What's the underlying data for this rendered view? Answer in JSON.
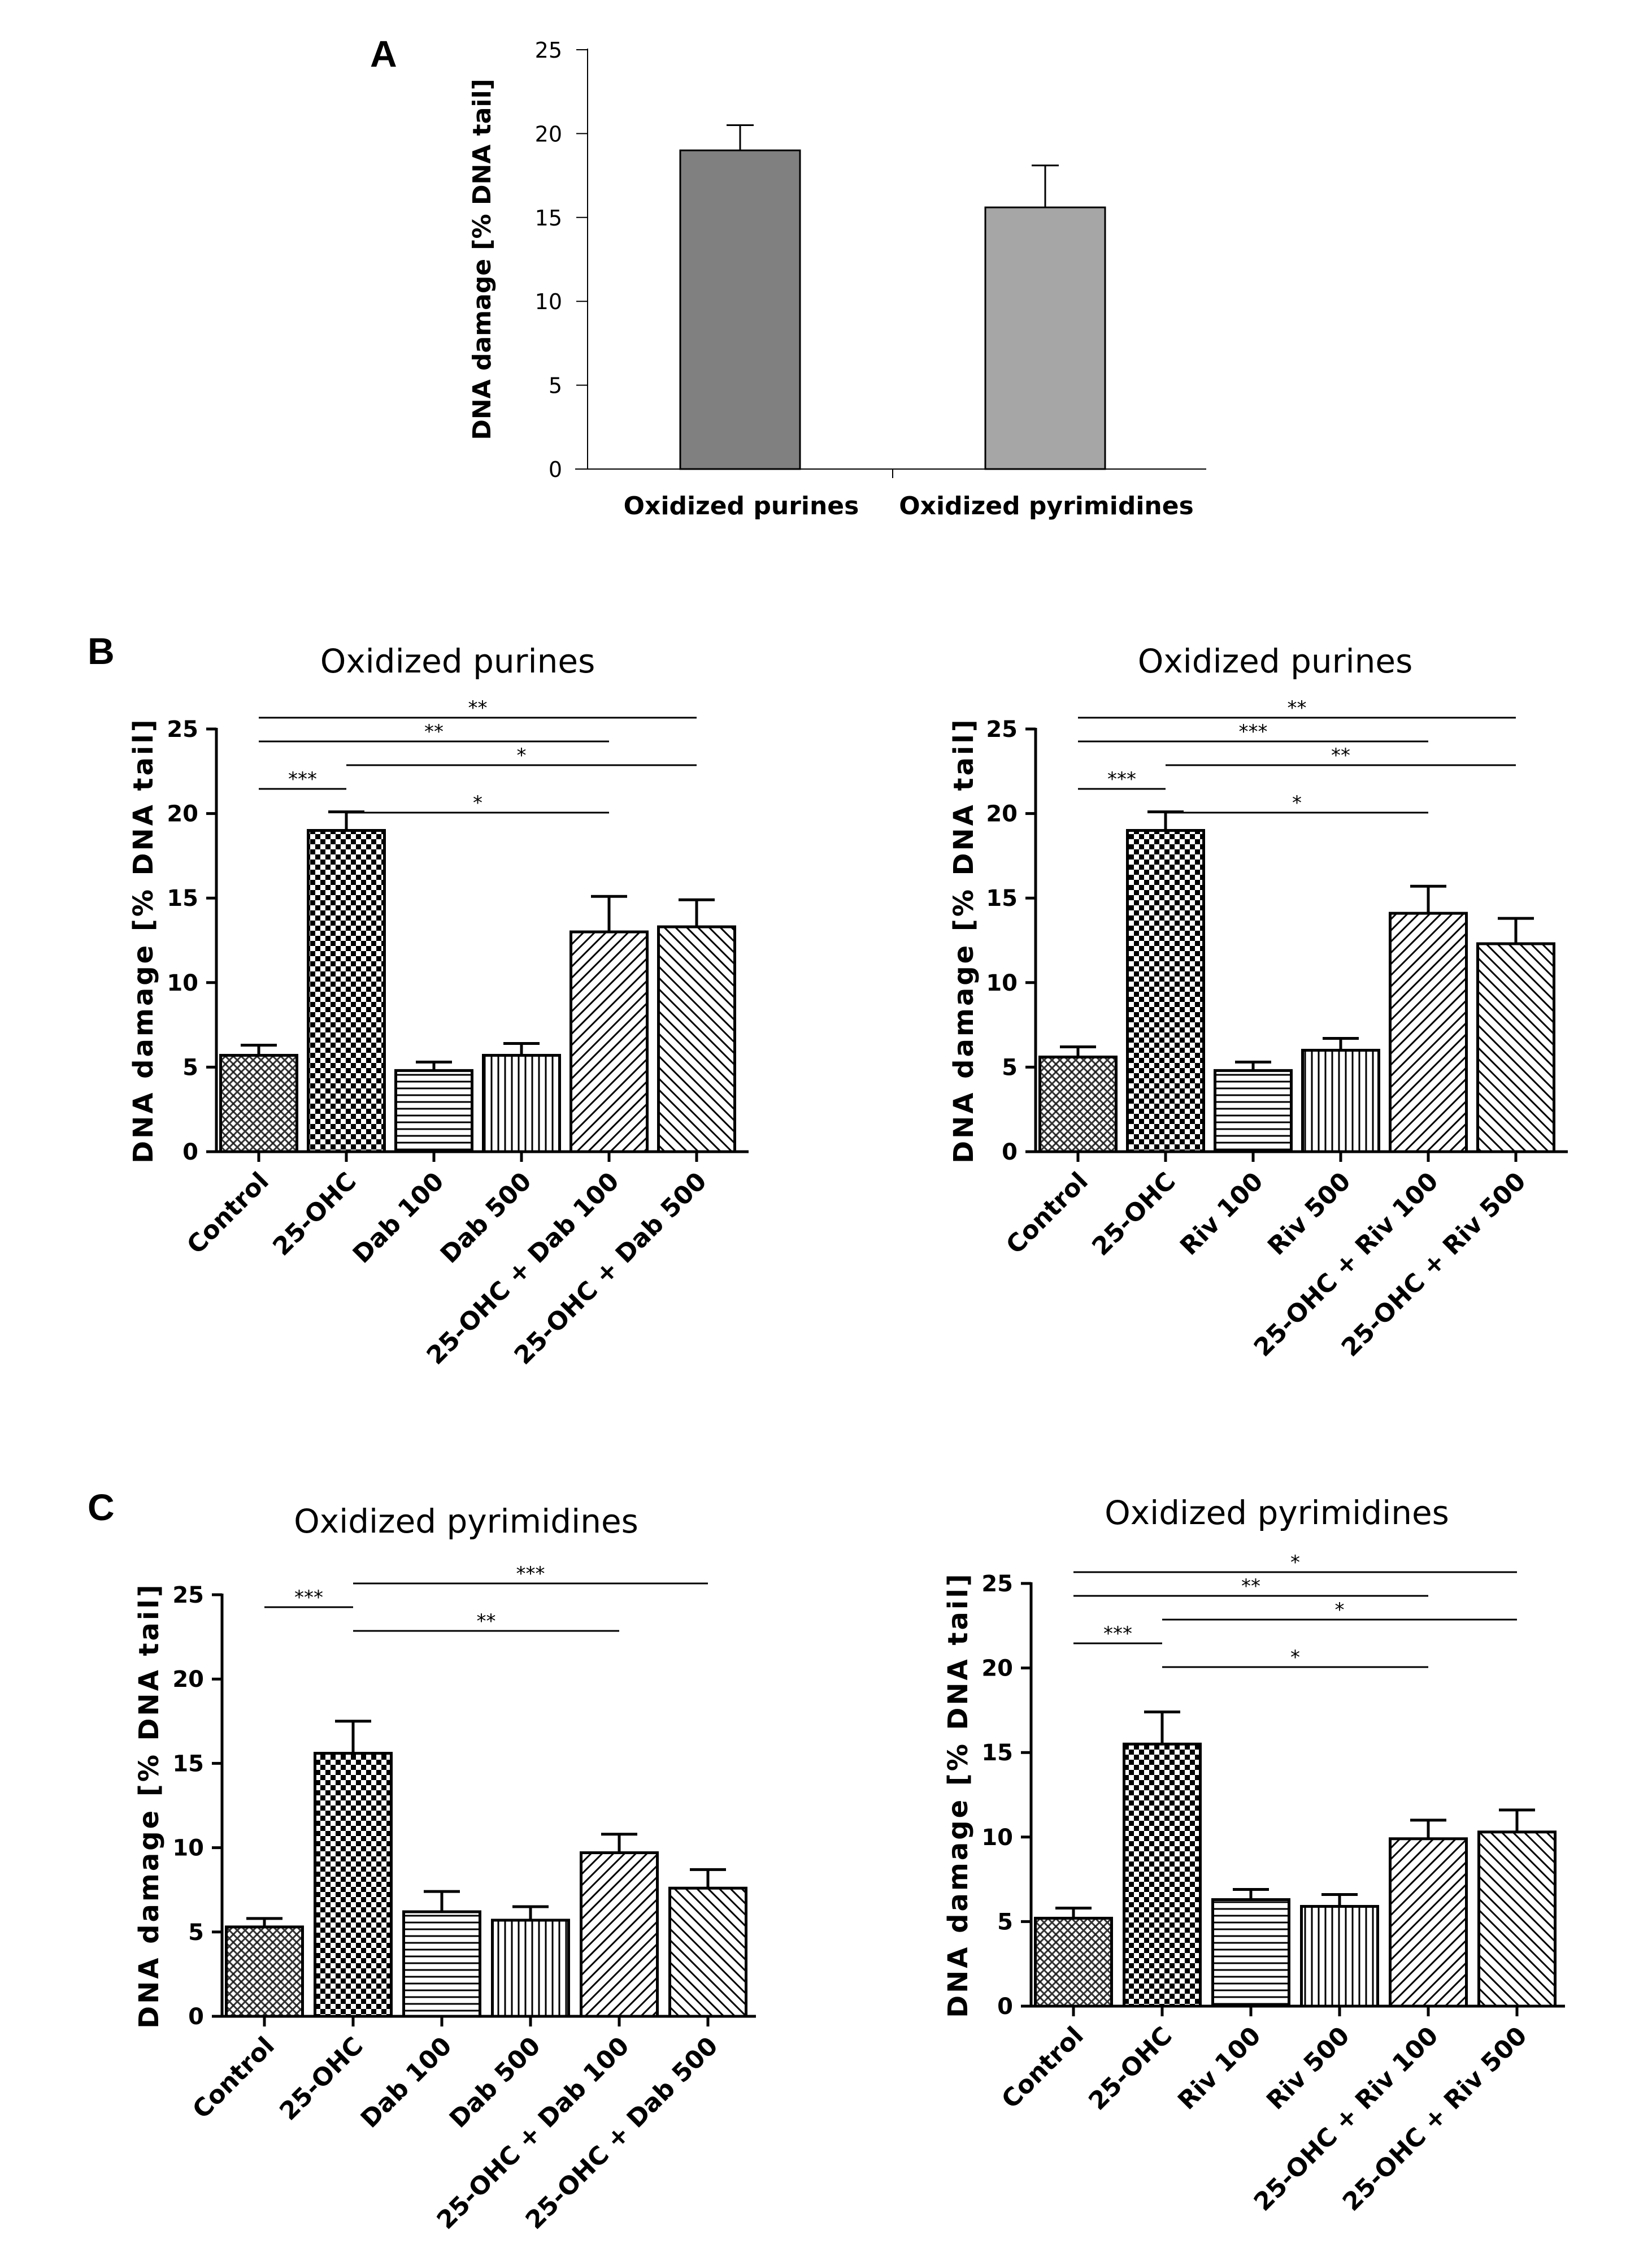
{
  "figure": {
    "panel_letters": [
      "A",
      "B",
      "C"
    ]
  },
  "chart_data": [
    {
      "id": "A",
      "type": "bar",
      "panel": "A",
      "title": "",
      "ylabel": "DNA damage [% DNA tail]",
      "ylim": [
        0,
        25
      ],
      "yticks": [
        0,
        5,
        10,
        15,
        20,
        25
      ],
      "categories": [
        "Oxidized purines",
        "Oxidized pyrimidines"
      ],
      "values": [
        19.0,
        15.6
      ],
      "errors": [
        1.5,
        2.5
      ],
      "colors": [
        "#808080",
        "#a6a6a6"
      ],
      "significance": []
    },
    {
      "id": "B-left",
      "type": "bar",
      "panel": "B",
      "title": "Oxidized purines",
      "ylabel": "DNA damage [% DNA tail]",
      "ylim": [
        0,
        25
      ],
      "yticks": [
        0,
        5,
        10,
        15,
        20,
        25
      ],
      "categories": [
        "Control",
        "25-OHC",
        "Dab 100",
        "Dab 500",
        "25-OHC + Dab 100",
        "25-OHC + Dab 500"
      ],
      "values": [
        5.7,
        19.0,
        4.8,
        5.7,
        13.0,
        13.3
      ],
      "errors": [
        0.6,
        1.1,
        0.5,
        0.7,
        2.1,
        1.6
      ],
      "patterns": [
        "crosshatch",
        "checker",
        "hlines",
        "vlines",
        "diag",
        "antidiag"
      ],
      "significance": [
        {
          "from": 0,
          "to": 5,
          "label": "**"
        },
        {
          "from": 0,
          "to": 4,
          "label": "**"
        },
        {
          "from": 1,
          "to": 5,
          "label": "*"
        },
        {
          "from": 0,
          "to": 1,
          "label": "***"
        },
        {
          "from": 1,
          "to": 4,
          "label": "*"
        }
      ]
    },
    {
      "id": "B-right",
      "type": "bar",
      "panel": "B",
      "title": "Oxidized purines",
      "ylabel": "DNA damage [% DNA tail]",
      "ylim": [
        0,
        25
      ],
      "yticks": [
        0,
        5,
        10,
        15,
        20,
        25
      ],
      "categories": [
        "Control",
        "25-OHC",
        "Riv 100",
        "Riv 500",
        "25-OHC + Riv 100",
        "25-OHC + Riv 500"
      ],
      "values": [
        5.6,
        19.0,
        4.8,
        6.0,
        14.1,
        12.3
      ],
      "errors": [
        0.6,
        1.1,
        0.5,
        0.7,
        1.6,
        1.5
      ],
      "patterns": [
        "crosshatch",
        "checker",
        "hlines",
        "vlines",
        "diag",
        "antidiag"
      ],
      "significance": [
        {
          "from": 0,
          "to": 5,
          "label": "**"
        },
        {
          "from": 0,
          "to": 4,
          "label": "***"
        },
        {
          "from": 1,
          "to": 5,
          "label": "**"
        },
        {
          "from": 0,
          "to": 1,
          "label": "***"
        },
        {
          "from": 1,
          "to": 4,
          "label": "*"
        }
      ]
    },
    {
      "id": "C-left",
      "type": "bar",
      "panel": "C",
      "title": "Oxidized pyrimidines",
      "ylabel": "DNA damage [% DNA tail]",
      "ylim": [
        0,
        25
      ],
      "yticks": [
        0,
        5,
        10,
        15,
        20,
        25
      ],
      "categories": [
        "Control",
        "25-OHC",
        "Dab 100",
        "Dab 500",
        "25-OHC + Dab 100",
        "25-OHC + Dab 500"
      ],
      "values": [
        5.3,
        15.6,
        6.2,
        5.7,
        9.7,
        7.6
      ],
      "errors": [
        0.5,
        1.9,
        1.2,
        0.8,
        1.1,
        1.1
      ],
      "patterns": [
        "crosshatch",
        "checker",
        "hlines",
        "vlines",
        "diag",
        "antidiag"
      ],
      "significance": [
        {
          "from": 1,
          "to": 5,
          "label": "***"
        },
        {
          "from": 0,
          "to": 1,
          "label": "***"
        },
        {
          "from": 1,
          "to": 4,
          "label": "**"
        }
      ]
    },
    {
      "id": "C-right",
      "type": "bar",
      "panel": "C",
      "title": "Oxidized pyrimidines",
      "ylabel": "DNA damage [% DNA tail]",
      "ylim": [
        0,
        25
      ],
      "yticks": [
        0,
        5,
        10,
        15,
        20,
        25
      ],
      "categories": [
        "Control",
        "25-OHC",
        "Riv 100",
        "Riv 500",
        "25-OHC + Riv 100",
        "25-OHC + Riv 500"
      ],
      "values": [
        5.2,
        15.5,
        6.3,
        5.9,
        9.9,
        10.3
      ],
      "errors": [
        0.6,
        1.9,
        0.6,
        0.7,
        1.1,
        1.3
      ],
      "patterns": [
        "crosshatch",
        "checker",
        "hlines",
        "vlines",
        "diag",
        "antidiag"
      ],
      "significance": [
        {
          "from": 0,
          "to": 5,
          "label": "*"
        },
        {
          "from": 0,
          "to": 4,
          "label": "**"
        },
        {
          "from": 1,
          "to": 5,
          "label": "*"
        },
        {
          "from": 0,
          "to": 1,
          "label": "***"
        },
        {
          "from": 1,
          "to": 4,
          "label": "*"
        }
      ]
    }
  ]
}
